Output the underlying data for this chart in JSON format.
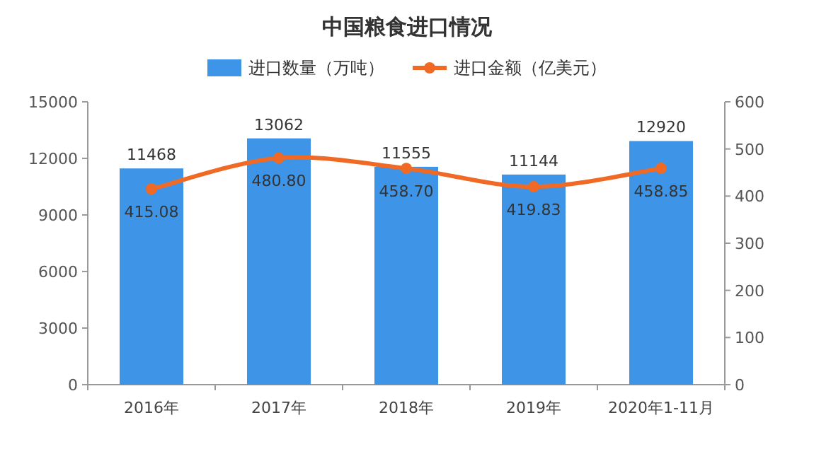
{
  "chart_data": {
    "type": "bar",
    "title": "中国粮食进口情况",
    "categories": [
      "2016年",
      "2017年",
      "2018年",
      "2019年",
      "2020年1-11月"
    ],
    "series": [
      {
        "name": "进口数量（万吨）",
        "color": "#3e95e8",
        "values": [
          11468,
          13062,
          11555,
          11144,
          12920
        ],
        "value_labels": [
          "11468",
          "13062",
          "11555",
          "11144",
          "12920"
        ]
      },
      {
        "name": "进口金额（亿美元）",
        "type": "line",
        "axis": "y2",
        "color": "#f06a25",
        "values": [
          415.08,
          480.8,
          458.7,
          419.83,
          458.85
        ],
        "value_labels": [
          "415.08",
          "480.80",
          "458.70",
          "419.83",
          "458.85"
        ]
      }
    ],
    "ylim": [
      0,
      15000
    ],
    "yticks": [
      0,
      3000,
      6000,
      9000,
      12000,
      15000
    ],
    "y2lim": [
      0,
      600
    ],
    "y2ticks": [
      0,
      100,
      200,
      300,
      400,
      500,
      600
    ],
    "legend": "top",
    "marker": "circle",
    "grid": false
  }
}
